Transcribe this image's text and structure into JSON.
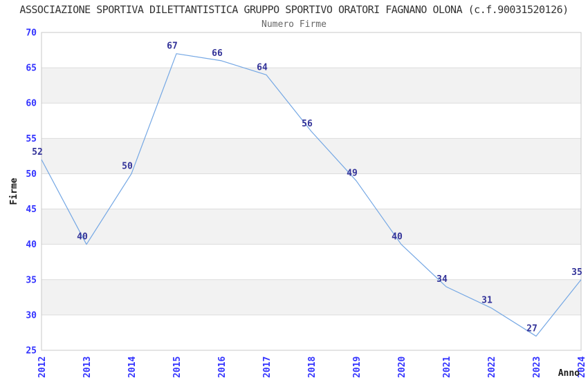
{
  "chart_data": {
    "type": "line",
    "title": "ASSOCIAZIONE SPORTIVA DILETTANTISTICA GRUPPO SPORTIVO ORATORI FAGNANO OLONA (c.f.90031520126)",
    "subtitle": "Numero Firme",
    "xlabel": "Anno",
    "ylabel": "Firme",
    "categories": [
      "2012",
      "2013",
      "2014",
      "2015",
      "2016",
      "2017",
      "2018",
      "2019",
      "2020",
      "2021",
      "2022",
      "2023",
      "2024"
    ],
    "values": [
      52,
      40,
      50,
      67,
      66,
      64,
      56,
      49,
      40,
      34,
      31,
      27,
      35
    ],
    "ylim": [
      25,
      70
    ],
    "ytick_step": 5,
    "yticks": [
      25,
      30,
      35,
      40,
      45,
      50,
      55,
      60,
      65,
      70
    ],
    "grid": "horizontal",
    "banded_background": true,
    "legend_position": "none",
    "colors": {
      "line": "#74a7e4",
      "value_label": "#333399",
      "tick_label": "#3333ff",
      "band": "#f2f2f2",
      "grid_line": "#dcdcdc",
      "frame": "#c8c8c8",
      "title": "#333333",
      "subtitle": "#666666",
      "axis_label": "#1a1a1a",
      "background": "#ffffff"
    }
  }
}
